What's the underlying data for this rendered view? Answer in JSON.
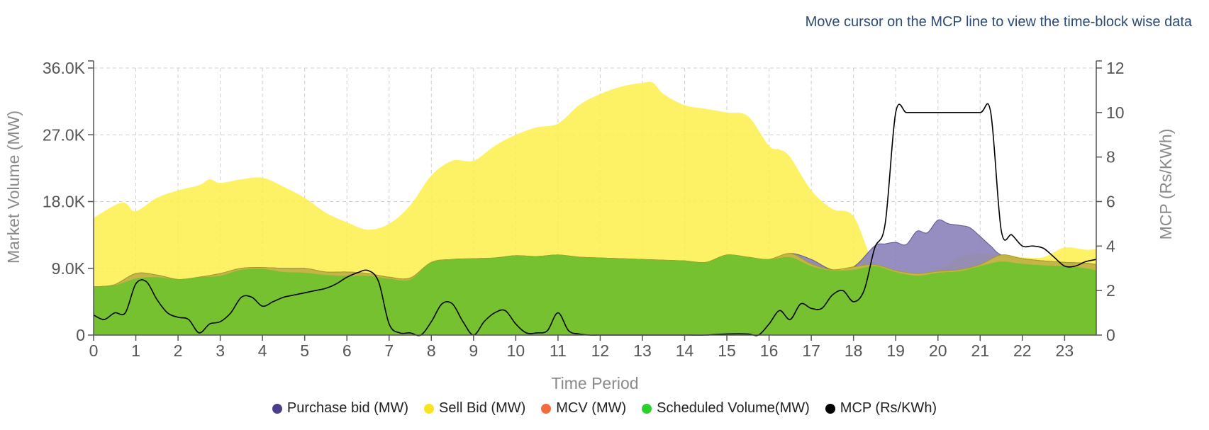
{
  "hint": "Move cursor on the MCP line to view the time-block wise data",
  "chart_data": {
    "type": "area",
    "xlabel": "Time Period",
    "ylabel_left": "Market Volume (MW)",
    "ylabel_right": "MCP (Rs/KWh)",
    "x_ticks": [
      "0",
      "1",
      "2",
      "3",
      "4",
      "5",
      "6",
      "7",
      "8",
      "9",
      "10",
      "11",
      "12",
      "13",
      "14",
      "15",
      "16",
      "17",
      "18",
      "19",
      "20",
      "21",
      "22",
      "23"
    ],
    "y_left_ticks": [
      "0",
      "9.0K",
      "18.0K",
      "27.0K",
      "36.0K"
    ],
    "y_left_tick_values": [
      0,
      9000,
      18000,
      27000,
      36000
    ],
    "y_right_ticks": [
      "0",
      "2",
      "4",
      "6",
      "8",
      "10",
      "12"
    ],
    "y_right_tick_values": [
      0,
      2,
      4,
      6,
      8,
      10,
      12
    ],
    "x_range": [
      0,
      23.75
    ],
    "y_left_range": [
      0,
      36000
    ],
    "y_right_range": [
      0,
      12
    ],
    "grid": true,
    "legend_position": "bottom",
    "series": [
      {
        "name": "Sell Bid (MW)",
        "axis": "left",
        "type": "area",
        "color": "#fdee4a",
        "x": [
          0,
          0.5,
          0.75,
          1,
          1.5,
          2,
          2.5,
          2.75,
          3,
          3.5,
          4,
          4.5,
          5,
          5.5,
          6,
          6.5,
          7,
          7.5,
          8,
          8.5,
          9,
          9.5,
          10,
          10.5,
          11,
          11.5,
          12,
          12.5,
          13,
          13.25,
          13.5,
          14,
          14.5,
          15,
          15.5,
          16,
          16.25,
          16.5,
          17,
          17.5,
          18,
          18.5,
          19,
          19.5,
          20,
          20.5,
          21,
          21.5,
          22,
          22.5,
          23,
          23.5,
          23.75
        ],
        "values": [
          15800,
          17500,
          17800,
          16700,
          18500,
          19500,
          20200,
          21000,
          20500,
          21000,
          21200,
          20000,
          18500,
          16500,
          15200,
          14200,
          15000,
          17500,
          21500,
          23500,
          23500,
          25500,
          27000,
          28000,
          28500,
          31000,
          32500,
          33500,
          34000,
          34000,
          32500,
          31000,
          30500,
          30000,
          29500,
          25500,
          25000,
          24000,
          19500,
          17000,
          16000,
          9500,
          8200,
          8000,
          8800,
          10500,
          11000,
          10800,
          10500,
          10500,
          11800,
          11500,
          11600
        ]
      },
      {
        "name": "Purchase bid (MW)",
        "axis": "left",
        "type": "area",
        "color": "#8b82ba",
        "x": [
          0,
          0.5,
          1,
          1.5,
          2,
          2.5,
          3,
          3.5,
          4,
          4.5,
          5,
          5.5,
          6,
          6.5,
          7,
          7.5,
          8,
          8.5,
          9,
          9.5,
          10,
          10.5,
          11,
          11.5,
          12,
          12.5,
          13,
          13.5,
          14,
          14.5,
          15,
          15.5,
          16,
          16.5,
          17,
          17.5,
          18,
          18.5,
          18.75,
          19,
          19.25,
          19.5,
          19.75,
          20,
          20.25,
          20.5,
          20.75,
          21,
          21.25,
          21.5,
          22,
          22.5,
          23,
          23.5,
          23.75
        ],
        "values": [
          6500,
          6800,
          8300,
          8100,
          7500,
          7800,
          8300,
          9000,
          9100,
          9000,
          9000,
          8500,
          8500,
          8300,
          7800,
          7700,
          9800,
          10200,
          10300,
          10400,
          10700,
          10600,
          10800,
          10500,
          10400,
          10300,
          10200,
          10100,
          10000,
          9800,
          10800,
          10500,
          10200,
          11000,
          10200,
          8800,
          9200,
          12000,
          12300,
          12500,
          12200,
          14000,
          13800,
          15500,
          15000,
          14800,
          14500,
          13300,
          12000,
          10800,
          10300,
          10000,
          9800,
          9700,
          9500
        ]
      },
      {
        "name": "MCV (MW)",
        "axis": "left",
        "type": "area",
        "color": "#c9b93c",
        "x": [
          0,
          0.5,
          1,
          1.5,
          2,
          2.5,
          3,
          3.5,
          4,
          4.5,
          5,
          5.5,
          6,
          6.5,
          7,
          7.5,
          8,
          8.5,
          9,
          9.5,
          10,
          10.5,
          11,
          11.5,
          12,
          12.5,
          13,
          13.5,
          14,
          14.5,
          15,
          15.5,
          16,
          16.5,
          17,
          17.5,
          18,
          18.5,
          19,
          19.5,
          20,
          20.5,
          21,
          21.5,
          22,
          22.5,
          23,
          23.5,
          23.75
        ],
        "values": [
          6500,
          6800,
          8300,
          8100,
          7500,
          7800,
          8300,
          9000,
          9100,
          9000,
          9000,
          8500,
          8500,
          8300,
          7800,
          7700,
          9800,
          10200,
          10300,
          10400,
          10700,
          10600,
          10800,
          10500,
          10400,
          10300,
          10200,
          10100,
          10000,
          9800,
          10800,
          10500,
          10200,
          11000,
          9600,
          8800,
          9200,
          9500,
          8700,
          8300,
          8600,
          8800,
          9500,
          10800,
          10300,
          10000,
          9800,
          9700,
          9500
        ]
      },
      {
        "name": "Scheduled Volume(MW)",
        "axis": "left",
        "type": "area",
        "color": "#6dc22c",
        "x": [
          0,
          0.5,
          1,
          1.5,
          2,
          2.5,
          3,
          3.5,
          4,
          4.5,
          5,
          5.5,
          6,
          6.5,
          7,
          7.5,
          8,
          8.5,
          9,
          9.5,
          10,
          10.5,
          11,
          11.5,
          12,
          12.5,
          13,
          13.5,
          14,
          14.5,
          15,
          15.5,
          16,
          16.5,
          17,
          17.5,
          18,
          18.5,
          19,
          19.5,
          20,
          20.5,
          21,
          21.5,
          22,
          22.5,
          23,
          23.5,
          23.75
        ],
        "values": [
          6500,
          6700,
          7600,
          7800,
          7500,
          7800,
          8000,
          8800,
          8900,
          8500,
          8400,
          8100,
          8000,
          8000,
          7600,
          7500,
          9800,
          10200,
          10300,
          10400,
          10700,
          10600,
          10800,
          10500,
          10400,
          10300,
          10200,
          10100,
          10000,
          9800,
          10800,
          10500,
          10200,
          10500,
          9300,
          8700,
          8800,
          9300,
          8500,
          8000,
          8400,
          8600,
          9300,
          9900,
          9600,
          9400,
          9300,
          9000,
          8700
        ]
      },
      {
        "name": "MCP (Rs/KWh)",
        "axis": "right",
        "type": "line",
        "color": "#000000",
        "x": [
          0,
          0.25,
          0.5,
          0.75,
          1,
          1.25,
          1.5,
          1.75,
          2,
          2.25,
          2.5,
          2.75,
          3,
          3.25,
          3.5,
          3.75,
          4,
          4.25,
          4.5,
          4.75,
          5,
          5.25,
          5.5,
          5.75,
          6,
          6.25,
          6.5,
          6.75,
          7,
          7.25,
          7.5,
          7.75,
          8,
          8.25,
          8.5,
          8.75,
          9,
          9.25,
          9.5,
          9.75,
          10,
          10.25,
          10.5,
          10.75,
          11,
          11.25,
          11.5,
          11.75,
          12,
          12.5,
          13,
          13.5,
          14,
          14.5,
          15,
          15.5,
          15.75,
          16,
          16.25,
          16.5,
          16.75,
          17,
          17.25,
          17.5,
          17.75,
          18,
          18.25,
          18.5,
          18.75,
          19,
          19.25,
          19.5,
          19.75,
          20,
          20.5,
          21,
          21.25,
          21.5,
          21.75,
          22,
          22.25,
          22.5,
          22.75,
          23,
          23.25,
          23.5,
          23.75
        ],
        "values": [
          0.9,
          0.7,
          1.0,
          1.0,
          2.3,
          2.4,
          1.6,
          1.0,
          0.8,
          0.7,
          0.1,
          0.5,
          0.6,
          1.0,
          1.7,
          1.7,
          1.3,
          1.5,
          1.7,
          1.8,
          1.9,
          2.0,
          2.1,
          2.3,
          2.6,
          2.8,
          2.9,
          2.4,
          0.5,
          0.1,
          0.1,
          0.0,
          0.6,
          1.4,
          1.4,
          0.6,
          0.0,
          0.6,
          1.0,
          1.1,
          0.5,
          0.1,
          0.1,
          0.2,
          1.0,
          0.2,
          0.05,
          0.0,
          0.0,
          0.0,
          0.0,
          0.0,
          0.0,
          0.0,
          0.05,
          0.05,
          0.0,
          0.5,
          1.1,
          0.7,
          1.4,
          1.2,
          1.2,
          1.8,
          2.0,
          1.5,
          2.0,
          3.9,
          5.0,
          10.0,
          10.0,
          10.0,
          10.0,
          10.0,
          10.0,
          10.0,
          10.0,
          4.7,
          4.5,
          4.0,
          4.0,
          3.9,
          3.5,
          3.1,
          3.1,
          3.3,
          3.4
        ]
      }
    ]
  }
}
